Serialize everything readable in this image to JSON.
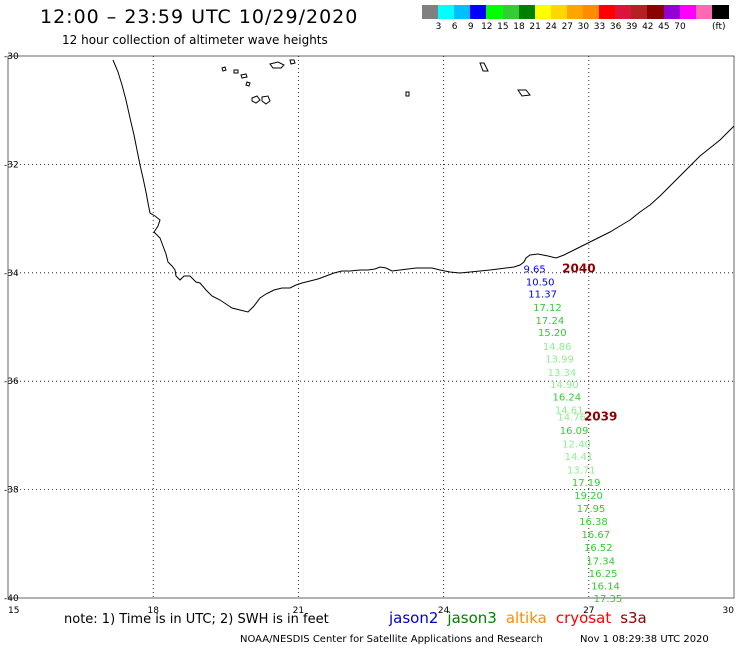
{
  "header": {
    "title": "12:00 – 23:59 UTC 10/29/2020",
    "subtitle": "12 hour collection of altimeter wave heights"
  },
  "color_scale": {
    "colors": [
      "#808080",
      "#00ffff",
      "#00bfff",
      "#0000ff",
      "#00ff00",
      "#32cd32",
      "#008000",
      "#ffff00",
      "#ffd700",
      "#ffa500",
      "#ff8c00",
      "#ff0000",
      "#dc143c",
      "#b22222",
      "#8b0000",
      "#9400d3",
      "#ff00ff",
      "#ff69b4",
      "#000000"
    ],
    "labels": [
      "3",
      "6",
      "9",
      "12",
      "15",
      "18",
      "21",
      "24",
      "27",
      "30",
      "33",
      "36",
      "39",
      "42",
      "45",
      "70"
    ],
    "unit": "(ft)"
  },
  "map": {
    "lon_ticks": [
      "15",
      "18",
      "21",
      "24",
      "27",
      "30"
    ],
    "lat_ticks": [
      "-30",
      "-32",
      "-34",
      "-36",
      "-38",
      "-40"
    ]
  },
  "swh_track": [
    {
      "lon": 25.65,
      "lat": -33.92,
      "value": "9.65",
      "color": "#0000ff"
    },
    {
      "lon": 25.7,
      "lat": -34.16,
      "value": "10.50",
      "color": "#0000ff"
    },
    {
      "lon": 25.75,
      "lat": -34.38,
      "value": "11.37",
      "color": "#0000ff"
    },
    {
      "lon": 25.85,
      "lat": -34.63,
      "value": "17.12",
      "color": "#32cd32"
    },
    {
      "lon": 25.9,
      "lat": -34.87,
      "value": "17.24",
      "color": "#32cd32"
    },
    {
      "lon": 25.95,
      "lat": -35.09,
      "value": "15.20",
      "color": "#32cd32"
    },
    {
      "lon": 26.05,
      "lat": -35.35,
      "value": "14.86",
      "color": "#90ee90"
    },
    {
      "lon": 26.1,
      "lat": -35.58,
      "value": "13.99",
      "color": "#90ee90"
    },
    {
      "lon": 26.15,
      "lat": -35.83,
      "value": "13.34",
      "color": "#90ee90"
    },
    {
      "lon": 26.2,
      "lat": -36.05,
      "value": "14.90",
      "color": "#90ee90"
    },
    {
      "lon": 26.25,
      "lat": -36.28,
      "value": "16.24",
      "color": "#32cd32"
    },
    {
      "lon": 26.3,
      "lat": -36.52,
      "value": "14.61",
      "color": "#90ee90"
    },
    {
      "lon": 26.35,
      "lat": -36.65,
      "value": "14.76",
      "color": "#90ee90"
    },
    {
      "lon": 26.4,
      "lat": -36.9,
      "value": "16.09",
      "color": "#32cd32"
    },
    {
      "lon": 26.45,
      "lat": -37.15,
      "value": "12.40",
      "color": "#90ee90"
    },
    {
      "lon": 26.5,
      "lat": -37.38,
      "value": "14.41",
      "color": "#90ee90"
    },
    {
      "lon": 26.55,
      "lat": -37.63,
      "value": "13.71",
      "color": "#90ee90"
    },
    {
      "lon": 26.65,
      "lat": -37.86,
      "value": "17.19",
      "color": "#32cd32"
    },
    {
      "lon": 26.7,
      "lat": -38.1,
      "value": "19.20",
      "color": "#32cd32"
    },
    {
      "lon": 26.75,
      "lat": -38.34,
      "value": "17.95",
      "color": "#32cd32"
    },
    {
      "lon": 26.8,
      "lat": -38.58,
      "value": "16.38",
      "color": "#32cd32"
    },
    {
      "lon": 26.85,
      "lat": -38.82,
      "value": "16.67",
      "color": "#32cd32"
    },
    {
      "lon": 26.9,
      "lat": -39.06,
      "value": "16.52",
      "color": "#32cd32"
    },
    {
      "lon": 26.95,
      "lat": -39.31,
      "value": "17.34",
      "color": "#32cd32"
    },
    {
      "lon": 27.0,
      "lat": -39.54,
      "value": "16.25",
      "color": "#32cd32"
    },
    {
      "lon": 27.05,
      "lat": -39.77,
      "value": "16.14",
      "color": "#32cd32"
    },
    {
      "lon": 27.1,
      "lat": -40.0,
      "value": "17.35",
      "color": "#32cd32"
    }
  ],
  "pass_labels": [
    {
      "lon": 26.45,
      "lat": -33.92,
      "value": "2040"
    },
    {
      "lon": 26.9,
      "lat": -36.65,
      "value": "2039"
    }
  ],
  "footer": {
    "note": "note: 1) Time is in UTC; 2) SWH is in feet",
    "satellites": [
      {
        "name": "jason2",
        "color": "#0000cd"
      },
      {
        "name": "jason3",
        "color": "#008000"
      },
      {
        "name": "altika",
        "color": "#ff8c00"
      },
      {
        "name": "cryosat",
        "color": "#ff0000"
      },
      {
        "name": "s3a",
        "color": "#8b0000"
      }
    ],
    "credit": "NOAA/NESDIS Center for Satellite Applications and Research",
    "timestamp": "Nov  1 08:29:38 UTC 2020"
  }
}
